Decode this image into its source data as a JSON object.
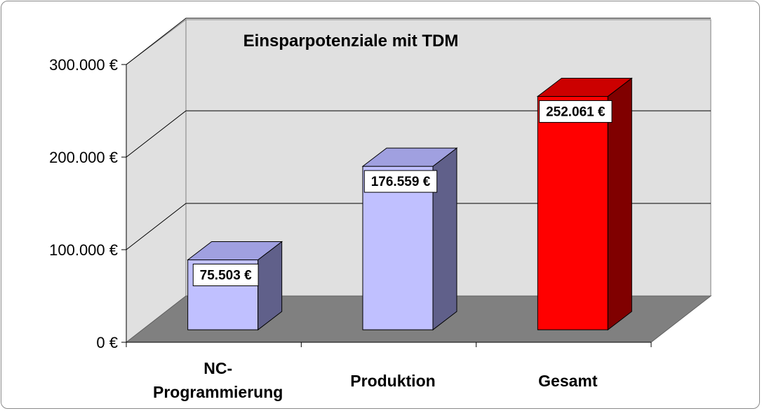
{
  "chart_data": {
    "type": "bar",
    "title": "Einsparpotenziale mit TDM",
    "categories": [
      "NC-Programmierung",
      "Produktion",
      "Gesamt"
    ],
    "category_label_lines": [
      [
        "NC-",
        "Programmierung"
      ],
      [
        "Produktion"
      ],
      [
        "Gesamt"
      ]
    ],
    "values": [
      75503,
      176559,
      252061
    ],
    "value_labels": [
      "75.503 €",
      "176.559 €",
      "252.061 €"
    ],
    "ylim": [
      0,
      300000
    ],
    "yticks": [
      0,
      100000,
      200000,
      300000
    ],
    "ytick_labels": [
      "0 €",
      "100.000 €",
      "200.000 €",
      "300.000 €"
    ],
    "xlabel": "",
    "ylabel": "",
    "grid": true,
    "style": "3d-column",
    "colors": {
      "bar_front": [
        "#c0c0ff",
        "#c0c0ff",
        "#ff0000"
      ],
      "bar_top": [
        "#a0a0e0",
        "#a0a0e0",
        "#cc0000"
      ],
      "bar_side": [
        "#60608a",
        "#60608a",
        "#800000"
      ],
      "wall": "#e0e0e0",
      "floor": "#808080",
      "gridline": "#000000"
    }
  }
}
